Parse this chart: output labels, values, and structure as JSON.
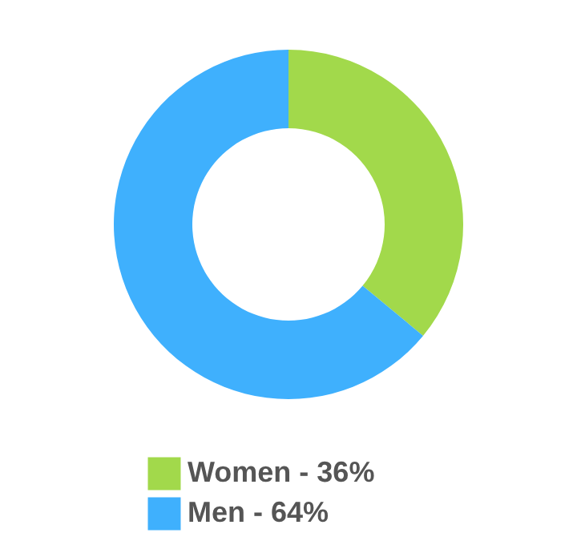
{
  "chart_data": {
    "type": "donut",
    "categories": [
      "Women - 36%",
      "Men - 64%"
    ],
    "values": [
      36,
      64
    ],
    "colors": [
      "#a2d94b",
      "#3fb0fd"
    ],
    "legend": "bottom"
  }
}
